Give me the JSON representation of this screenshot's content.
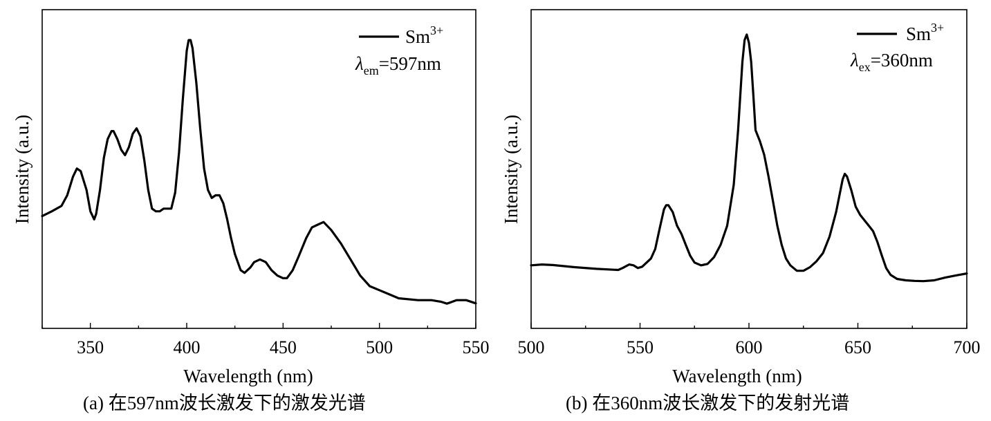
{
  "chart_data": [
    {
      "type": "line",
      "caption": "(a) 在597nm波长激发下的激发光谱",
      "xlabel": "Wavelength (nm)",
      "ylabel": "Intensity (a.u.)",
      "xlim": [
        325,
        550
      ],
      "ylim": [
        0,
        1
      ],
      "xticks": [
        350,
        400,
        450,
        500,
        550
      ],
      "yticks_labeled": false,
      "grid": false,
      "legend": {
        "placement": "top-right",
        "series": "Sm",
        "series_sup": "3+",
        "condition_symbol": "λ",
        "condition_sub": "em",
        "condition_value": "=597nm"
      },
      "series": [
        {
          "name": "Sm3+",
          "x": [
            325,
            330,
            335,
            338,
            341,
            343,
            345,
            348,
            350,
            352,
            353,
            355,
            357,
            359,
            361,
            362,
            364,
            366,
            368,
            370,
            372,
            374,
            376,
            378,
            380,
            382,
            384,
            386,
            388,
            390,
            392,
            394,
            396,
            398,
            400,
            401,
            402,
            403,
            405,
            407,
            409,
            411,
            413,
            415,
            417,
            419,
            421,
            423,
            425,
            428,
            430,
            433,
            435,
            438,
            441,
            444,
            447,
            450,
            452,
            455,
            458,
            462,
            465,
            468,
            471,
            475,
            480,
            485,
            490,
            495,
            500,
            505,
            510,
            520,
            527,
            532,
            535,
            537,
            540,
            545,
            550
          ],
          "y": [
            0.342,
            0.36,
            0.38,
            0.42,
            0.49,
            0.52,
            0.51,
            0.44,
            0.36,
            0.33,
            0.35,
            0.44,
            0.56,
            0.63,
            0.66,
            0.66,
            0.63,
            0.59,
            0.57,
            0.6,
            0.65,
            0.67,
            0.64,
            0.55,
            0.44,
            0.37,
            0.36,
            0.36,
            0.37,
            0.37,
            0.37,
            0.43,
            0.58,
            0.78,
            0.96,
            1.0,
            1.0,
            0.97,
            0.84,
            0.67,
            0.52,
            0.44,
            0.41,
            0.42,
            0.42,
            0.39,
            0.33,
            0.26,
            0.2,
            0.14,
            0.13,
            0.15,
            0.17,
            0.18,
            0.17,
            0.14,
            0.12,
            0.11,
            0.11,
            0.14,
            0.19,
            0.26,
            0.3,
            0.31,
            0.32,
            0.29,
            0.24,
            0.18,
            0.12,
            0.08,
            0.065,
            0.05,
            0.035,
            0.028,
            0.028,
            0.022,
            0.015,
            0.02,
            0.028,
            0.028,
            0.016
          ]
        }
      ]
    },
    {
      "type": "line",
      "caption": "(b) 在360nm波长激发下的发射光谱",
      "xlabel": "Wavelength (nm)",
      "ylabel": "Intensity (a.u.)",
      "xlim": [
        500,
        700
      ],
      "ylim": [
        0,
        1
      ],
      "xticks": [
        500,
        550,
        600,
        650,
        700
      ],
      "yticks_labeled": false,
      "grid": false,
      "legend": {
        "placement": "top-right",
        "series": "Sm",
        "series_sup": "3+",
        "condition_symbol": "λ",
        "condition_sub": "ex",
        "condition_value": "=360nm"
      },
      "series": [
        {
          "name": "Sm3+",
          "x": [
            500,
            505,
            510,
            520,
            530,
            540,
            542,
            545,
            547,
            549,
            551,
            553,
            555,
            557,
            559,
            561,
            562,
            563,
            565,
            567,
            569,
            571,
            573,
            575,
            578,
            581,
            584,
            587,
            590,
            593,
            595,
            597,
            598,
            599,
            600,
            601,
            602,
            603,
            605,
            607,
            609,
            611,
            613,
            615,
            617,
            619,
            622,
            625,
            628,
            631,
            634,
            637,
            640,
            643,
            644,
            645,
            647,
            649,
            651,
            653,
            655,
            657,
            659,
            661,
            663,
            665,
            668,
            672,
            676,
            680,
            685,
            690,
            695,
            700
          ],
          "y": [
            0.155,
            0.158,
            0.156,
            0.148,
            0.142,
            0.138,
            0.145,
            0.158,
            0.155,
            0.145,
            0.15,
            0.165,
            0.18,
            0.215,
            0.29,
            0.36,
            0.375,
            0.375,
            0.35,
            0.3,
            0.27,
            0.23,
            0.19,
            0.165,
            0.155,
            0.16,
            0.185,
            0.23,
            0.3,
            0.45,
            0.65,
            0.9,
            0.98,
            1.0,
            0.97,
            0.9,
            0.78,
            0.65,
            0.61,
            0.56,
            0.48,
            0.39,
            0.3,
            0.23,
            0.18,
            0.155,
            0.135,
            0.135,
            0.148,
            0.17,
            0.2,
            0.26,
            0.35,
            0.47,
            0.49,
            0.48,
            0.43,
            0.37,
            0.34,
            0.32,
            0.3,
            0.28,
            0.24,
            0.19,
            0.145,
            0.12,
            0.105,
            0.1,
            0.098,
            0.097,
            0.1,
            0.11,
            0.118,
            0.125
          ]
        }
      ]
    }
  ]
}
